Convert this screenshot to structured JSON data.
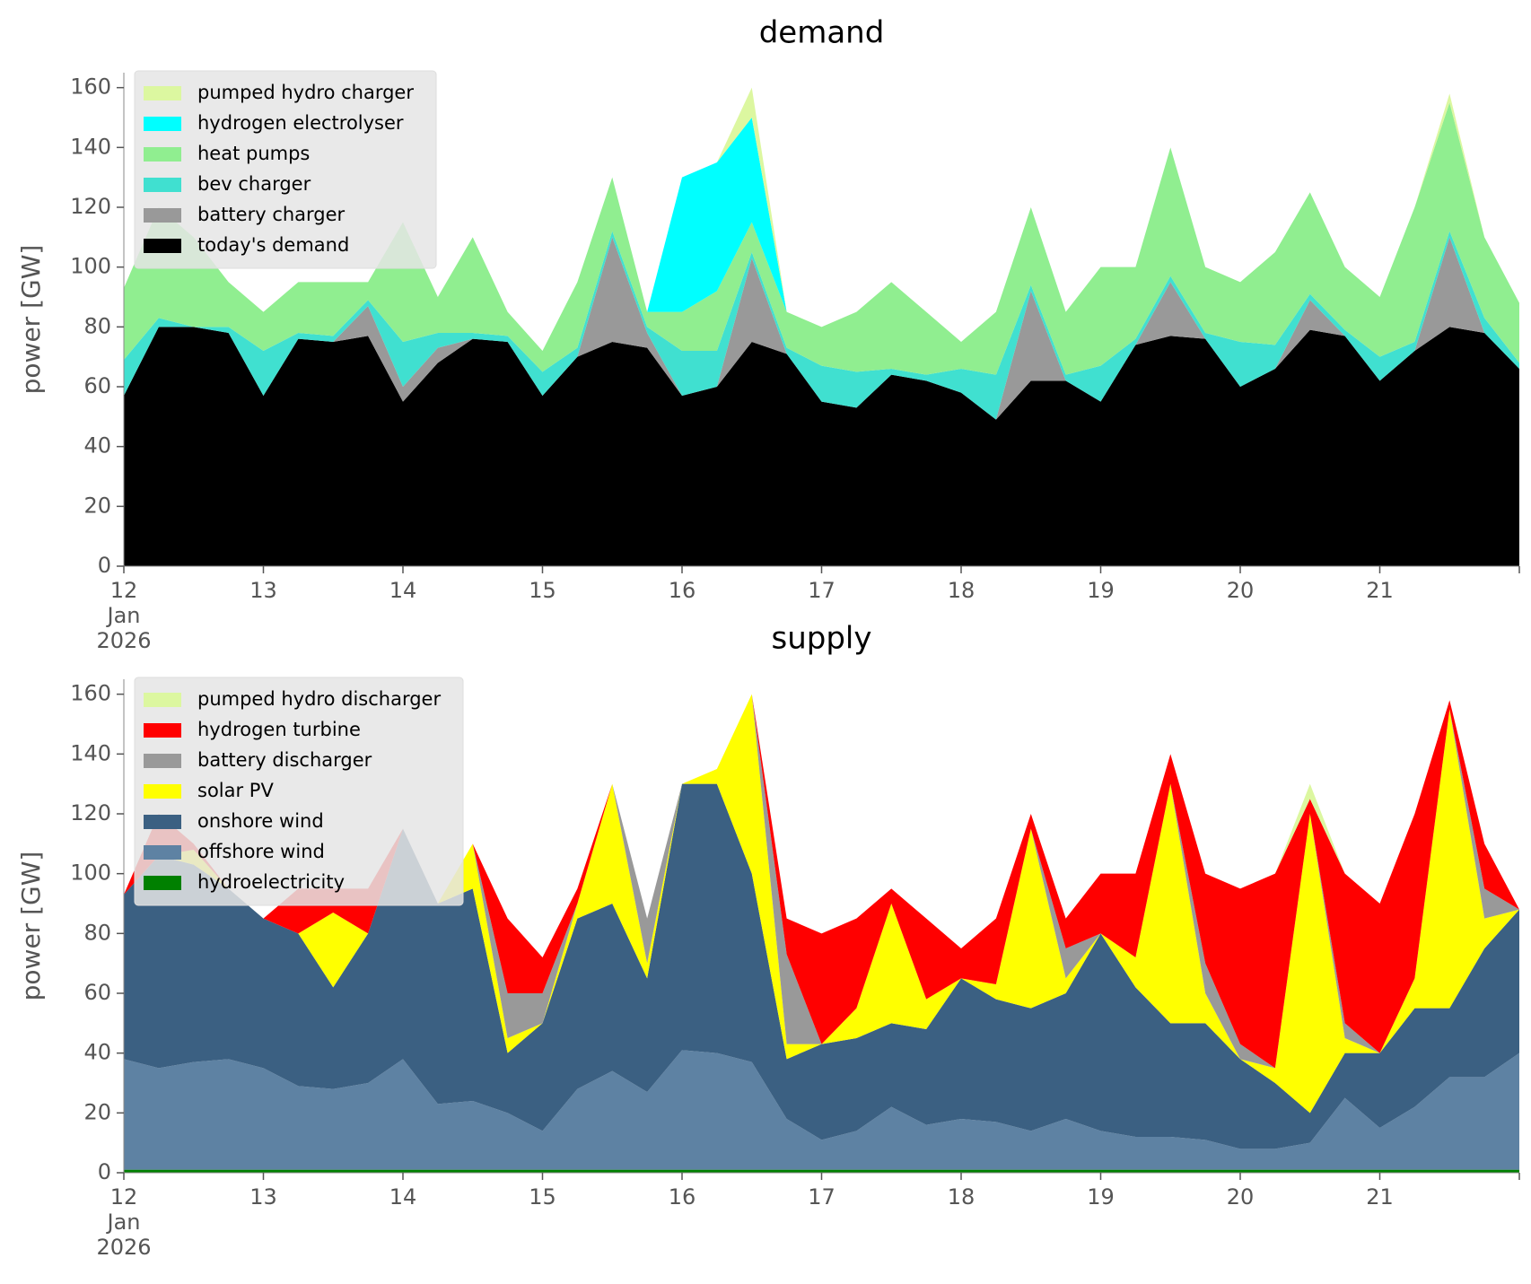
{
  "chart_data": [
    {
      "type": "area",
      "stacked": true,
      "title": "demand",
      "ylabel": "power [GW]",
      "legend": "upper left",
      "grid": false,
      "x": [
        12,
        12.25,
        12.5,
        12.75,
        13,
        13.25,
        13.5,
        13.75,
        14,
        14.25,
        14.5,
        14.75,
        15,
        15.25,
        15.5,
        15.75,
        16,
        16.25,
        16.5,
        16.75,
        17,
        17.25,
        17.5,
        17.75,
        18,
        18.25,
        18.5,
        18.75,
        19,
        19.25,
        19.5,
        19.75,
        20,
        20.25,
        20.5,
        20.75,
        21,
        21.25,
        21.5,
        21.75,
        22
      ],
      "xlim": [
        12,
        22
      ],
      "xticks": [
        {
          "value": 12,
          "label": "12\nJan\n2026"
        },
        13,
        14,
        15,
        16,
        17,
        18,
        19,
        20,
        21
      ],
      "ylim": [
        0,
        165
      ],
      "yticks": [
        0,
        20,
        40,
        60,
        80,
        100,
        120,
        140,
        160
      ],
      "series": [
        {
          "name": "today's demand",
          "color": "#000000",
          "values": [
            57,
            80,
            80,
            78,
            57,
            76,
            75,
            77,
            55,
            68,
            76,
            75,
            57,
            70,
            75,
            73,
            57,
            60,
            75,
            71,
            55,
            53,
            64,
            62,
            58,
            49,
            62,
            62,
            55,
            74,
            77,
            76,
            60,
            66,
            79,
            77,
            62,
            72,
            80,
            78,
            66
          ]
        },
        {
          "name": "battery charger",
          "color": "#999999",
          "values": [
            0,
            0,
            0,
            0,
            0,
            0,
            0,
            10,
            5,
            5,
            0,
            0,
            0,
            0,
            35,
            5,
            0,
            0,
            28,
            0,
            0,
            0,
            0,
            0,
            0,
            0,
            30,
            0,
            0,
            0,
            18,
            0,
            0,
            0,
            10,
            0,
            0,
            0,
            30,
            0,
            0
          ]
        },
        {
          "name": "bev charger",
          "color": "#40e0d0",
          "values": [
            12,
            3,
            0,
            2,
            15,
            2,
            2,
            2,
            15,
            5,
            2,
            2,
            8,
            3,
            2,
            2,
            15,
            12,
            2,
            2,
            12,
            12,
            2,
            2,
            8,
            15,
            2,
            2,
            12,
            2,
            2,
            2,
            15,
            8,
            2,
            2,
            8,
            3,
            2,
            5,
            2
          ]
        },
        {
          "name": "heat pumps",
          "color": "#90ee90",
          "values": [
            24,
            37,
            30,
            15,
            13,
            17,
            18,
            6,
            40,
            12,
            32,
            8,
            7,
            22,
            18,
            5,
            13,
            20,
            10,
            12,
            13,
            20,
            29,
            21,
            9,
            21,
            26,
            21,
            33,
            24,
            43,
            22,
            20,
            31,
            34,
            21,
            20,
            45,
            43,
            27,
            20
          ]
        },
        {
          "name": "hydrogen electrolyser",
          "color": "#00ffff",
          "values": [
            0,
            0,
            0,
            0,
            0,
            0,
            0,
            0,
            0,
            0,
            0,
            0,
            0,
            0,
            0,
            0,
            45,
            43,
            35,
            0,
            0,
            0,
            0,
            0,
            0,
            0,
            0,
            0,
            0,
            0,
            0,
            0,
            0,
            0,
            0,
            0,
            0,
            0,
            0,
            0,
            0
          ]
        },
        {
          "name": "pumped hydro charger",
          "color": "#dcf7a0",
          "values": [
            0,
            0,
            0,
            0,
            0,
            0,
            0,
            0,
            0,
            0,
            0,
            0,
            0,
            0,
            0,
            0,
            0,
            0,
            10,
            0,
            0,
            0,
            0,
            0,
            0,
            0,
            0,
            0,
            0,
            0,
            0,
            0,
            0,
            0,
            0,
            0,
            0,
            0,
            3,
            0,
            0
          ]
        }
      ]
    },
    {
      "type": "area",
      "stacked": true,
      "title": "supply",
      "ylabel": "power [GW]",
      "legend": "upper left",
      "grid": false,
      "x": [
        12,
        12.25,
        12.5,
        12.75,
        13,
        13.25,
        13.5,
        13.75,
        14,
        14.25,
        14.5,
        14.75,
        15,
        15.25,
        15.5,
        15.75,
        16,
        16.25,
        16.5,
        16.75,
        17,
        17.25,
        17.5,
        17.75,
        18,
        18.25,
        18.5,
        18.75,
        19,
        19.25,
        19.5,
        19.75,
        20,
        20.25,
        20.5,
        20.75,
        21,
        21.25,
        21.5,
        21.75,
        22
      ],
      "xlim": [
        12,
        22
      ],
      "xticks": [
        {
          "value": 12,
          "label": "12\nJan\n2026"
        },
        13,
        14,
        15,
        16,
        17,
        18,
        19,
        20,
        21
      ],
      "ylim": [
        0,
        165
      ],
      "yticks": [
        0,
        20,
        40,
        60,
        80,
        100,
        120,
        140,
        160
      ],
      "series": [
        {
          "name": "hydroelectricity",
          "color": "#008000",
          "values": [
            1,
            1,
            1,
            1,
            1,
            1,
            1,
            1,
            1,
            1,
            1,
            1,
            1,
            1,
            1,
            1,
            1,
            1,
            1,
            1,
            1,
            1,
            1,
            1,
            1,
            1,
            1,
            1,
            1,
            1,
            1,
            1,
            1,
            1,
            1,
            1,
            1,
            1,
            1,
            1,
            1
          ]
        },
        {
          "name": "offshore wind",
          "color": "#5e82a3",
          "values": [
            37,
            34,
            36,
            37,
            34,
            28,
            27,
            29,
            37,
            22,
            23,
            19,
            13,
            27,
            33,
            26,
            40,
            39,
            36,
            17,
            10,
            13,
            21,
            15,
            17,
            16,
            13,
            17,
            13,
            11,
            11,
            10,
            7,
            7,
            9,
            24,
            14,
            21,
            31,
            31,
            39
          ]
        },
        {
          "name": "onshore wind",
          "color": "#3b6082",
          "values": [
            55,
            71,
            66,
            57,
            50,
            51,
            34,
            50,
            77,
            67,
            71,
            20,
            36,
            57,
            56,
            38,
            89,
            90,
            63,
            20,
            32,
            31,
            28,
            32,
            47,
            41,
            41,
            42,
            66,
            50,
            38,
            39,
            30,
            22,
            10,
            15,
            25,
            33,
            23,
            43,
            48
          ]
        },
        {
          "name": "solar PV",
          "color": "#ffff00",
          "values": [
            0,
            0,
            5,
            0,
            0,
            0,
            25,
            0,
            0,
            0,
            15,
            5,
            0,
            5,
            40,
            5,
            0,
            5,
            60,
            5,
            0,
            10,
            40,
            10,
            0,
            5,
            60,
            5,
            0,
            10,
            80,
            10,
            0,
            5,
            100,
            5,
            0,
            10,
            100,
            10,
            0
          ]
        },
        {
          "name": "battery discharger",
          "color": "#999999",
          "values": [
            0,
            0,
            0,
            0,
            0,
            0,
            0,
            0,
            0,
            0,
            0,
            15,
            10,
            0,
            0,
            15,
            0,
            0,
            0,
            30,
            0,
            0,
            0,
            0,
            0,
            0,
            0,
            10,
            0,
            0,
            0,
            10,
            5,
            0,
            0,
            5,
            0,
            0,
            0,
            10,
            0
          ]
        },
        {
          "name": "hydrogen turbine",
          "color": "#ff0000",
          "values": [
            0,
            14,
            2,
            0,
            0,
            15,
            8,
            15,
            0,
            0,
            0,
            25,
            12,
            5,
            0,
            0,
            0,
            0,
            0,
            12,
            37,
            30,
            5,
            27,
            10,
            22,
            5,
            10,
            20,
            28,
            10,
            30,
            52,
            65,
            5,
            50,
            50,
            55,
            3,
            15,
            0
          ]
        },
        {
          "name": "pumped hydro discharger",
          "color": "#dcf7a0",
          "values": [
            0,
            0,
            0,
            0,
            0,
            0,
            0,
            0,
            0,
            0,
            0,
            0,
            0,
            0,
            0,
            0,
            0,
            0,
            0,
            0,
            0,
            0,
            0,
            0,
            0,
            0,
            0,
            0,
            0,
            0,
            0,
            0,
            0,
            0,
            5,
            0,
            0,
            0,
            0,
            0,
            0
          ]
        }
      ]
    }
  ]
}
